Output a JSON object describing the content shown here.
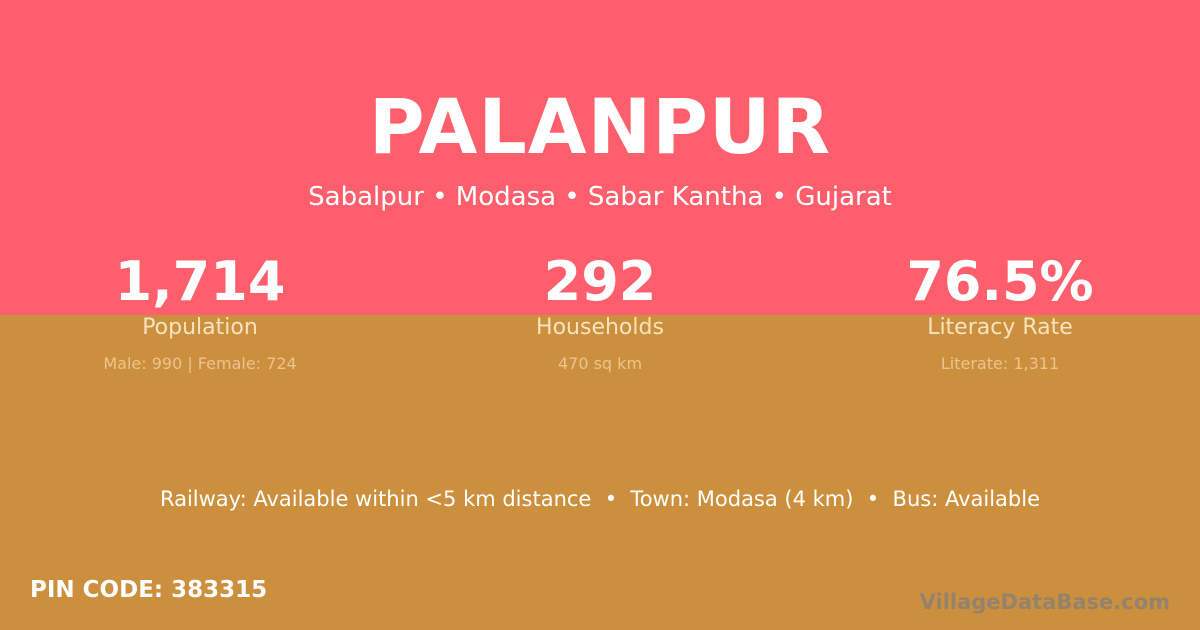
{
  "colors": {
    "top": "#ff5f6d",
    "bottom": "#cc8f3e"
  },
  "title": "PALANPUR",
  "location": "Sabalpur • Modasa • Sabar Kantha • Gujarat",
  "stats": [
    {
      "value": "1,714",
      "label": "Population",
      "sub": "Male: 990 | Female: 724"
    },
    {
      "value": "292",
      "label": "Households",
      "sub": "470 sq km"
    },
    {
      "value": "76.5%",
      "label": "Literacy Rate",
      "sub": "Literate: 1,311"
    }
  ],
  "facilities": "Railway: Available within <5 km distance  •  Town: Modasa (4 km)  •  Bus: Available",
  "pin": "PIN CODE: 383315",
  "brand": "VillageDataBase.com"
}
